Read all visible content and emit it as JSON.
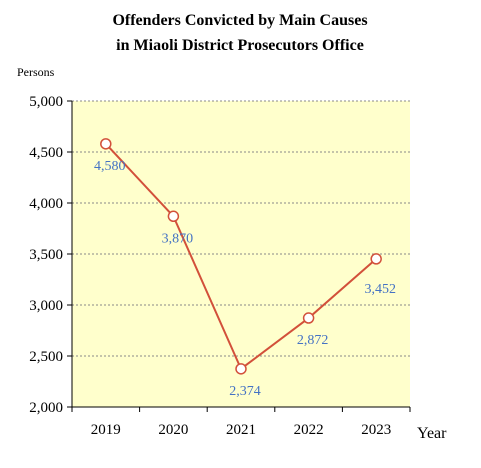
{
  "chart_data": {
    "type": "line",
    "title_lines": [
      "Offenders Convicted by Main Causes",
      "in Miaoli District Prosecutors Office"
    ],
    "ylabel": "Persons",
    "xlabel": "Year",
    "categories": [
      "2019",
      "2020",
      "2021",
      "2022",
      "2023"
    ],
    "values": [
      4580,
      3870,
      2374,
      2872,
      3452
    ],
    "data_labels": [
      "4,580",
      "3,870",
      "2,374",
      "2,872",
      "3,452"
    ],
    "ylim": [
      2000,
      5000
    ],
    "yticks": [
      2000,
      2500,
      3000,
      3500,
      4000,
      4500,
      5000
    ],
    "ytick_labels": [
      "2,000",
      "2,500",
      "3,000",
      "3,500",
      "4,000",
      "4,500",
      "5,000"
    ],
    "grid": true,
    "legend": "none"
  },
  "colors": {
    "plot_bg": "#ffffcc",
    "line": "#d2503a",
    "marker_fill": "#ffffff",
    "label": "#4472c4",
    "grid": "#888888",
    "axis": "#000000"
  }
}
